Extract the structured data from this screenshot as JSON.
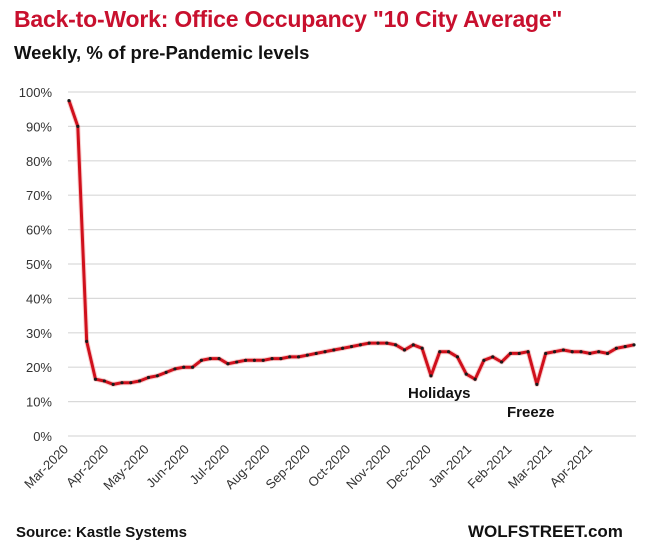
{
  "header": {
    "title": "Back-to-Work:  Office Occupancy \"10 City Average\"",
    "subtitle": "Weekly, % of pre-Pandemic levels"
  },
  "footer": {
    "source": "Source: Kastle Systems",
    "brand": "WOLFSTREET.com"
  },
  "colors": {
    "title": "#c8102e",
    "line": "#d0101c",
    "marker": "#1a1a1a",
    "grid": "#d9d9d9"
  },
  "chart_data": {
    "type": "line",
    "title": "Back-to-Work:  Office Occupancy \"10 City Average\"",
    "subtitle": "Weekly, % of pre-Pandemic levels",
    "xlabel": "",
    "ylabel": "",
    "ylim": [
      0,
      100
    ],
    "yticks": [
      "0%",
      "10%",
      "20%",
      "30%",
      "40%",
      "50%",
      "60%",
      "70%",
      "80%",
      "90%",
      "100%"
    ],
    "xticks": [
      "Mar-2020",
      "Apr-2020",
      "May-2020",
      "Jun-2020",
      "Jul-2020",
      "Aug-2020",
      "Sep-2020",
      "Oct-2020",
      "Nov-2020",
      "Dec-2020",
      "Jan-2021",
      "Feb-2021",
      "Mar-2021",
      "Apr-2021"
    ],
    "grid": true,
    "legend": "none",
    "annotations": [
      {
        "text": "Holidays",
        "near": "late Dec 2020 / early Jan 2021 dips"
      },
      {
        "text": "Freeze",
        "near": "mid Feb 2021 dip"
      }
    ],
    "source": "Source: Kastle Systems",
    "series": [
      {
        "name": "10 City Average",
        "frequency": "weekly",
        "values": [
          97.5,
          90,
          27.5,
          16.5,
          16,
          15,
          15.5,
          15.5,
          16,
          17,
          17.5,
          18.5,
          19.5,
          20,
          20,
          22,
          22.5,
          22.5,
          21,
          21.5,
          22,
          22,
          22,
          22.5,
          22.5,
          23,
          23,
          23.5,
          24,
          24.5,
          25,
          25.5,
          26,
          26.5,
          27,
          27,
          27,
          26.5,
          25,
          26.5,
          25.5,
          17.5,
          24.5,
          24.5,
          23,
          18,
          16.5,
          22,
          23,
          21.5,
          24,
          24,
          24.5,
          15,
          24,
          24.5,
          25,
          24.5,
          24.5,
          24,
          24.5,
          24,
          25.5,
          26,
          26.5
        ]
      }
    ]
  }
}
